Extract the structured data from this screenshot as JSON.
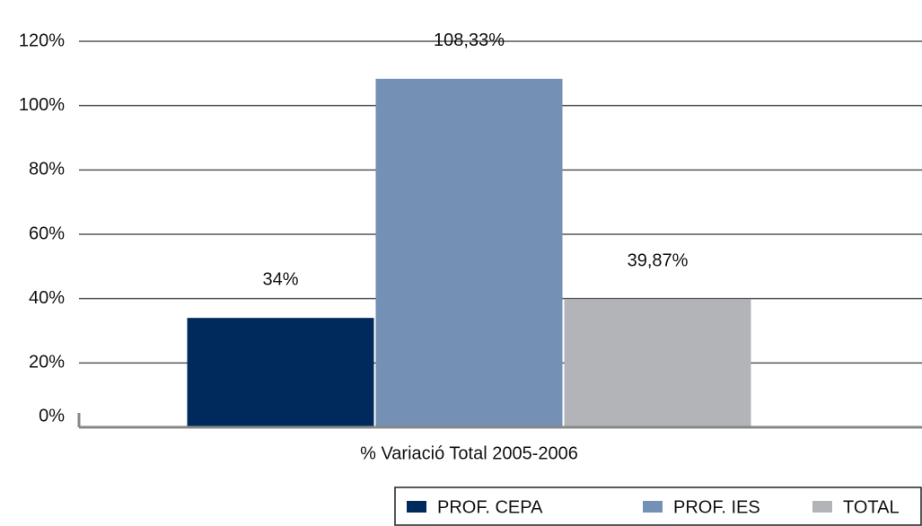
{
  "chart_data": {
    "type": "bar",
    "categories": [
      "% Variació Total 2005-2006"
    ],
    "series": [
      {
        "name": "PROF. CEPA",
        "color": "#002a5c",
        "values": [
          34
        ],
        "value_labels": [
          "34%"
        ]
      },
      {
        "name": "PROF. IES",
        "color": "#7490b5",
        "values": [
          108.33
        ],
        "value_labels": [
          "108,33%"
        ]
      },
      {
        "name": "TOTAL",
        "color": "#b3b4b8",
        "values": [
          39.87
        ],
        "value_labels": [
          "39,87%"
        ]
      }
    ],
    "ylim": [
      0,
      120
    ],
    "yticks": [
      {
        "value": 0,
        "label": "0%"
      },
      {
        "value": 20,
        "label": "20%"
      },
      {
        "value": 40,
        "label": "40%"
      },
      {
        "value": 60,
        "label": "60%"
      },
      {
        "value": 80,
        "label": "80%"
      },
      {
        "value": 100,
        "label": "100%"
      },
      {
        "value": 120,
        "label": "120%"
      }
    ],
    "grid": true,
    "legend": "bottom-right"
  }
}
